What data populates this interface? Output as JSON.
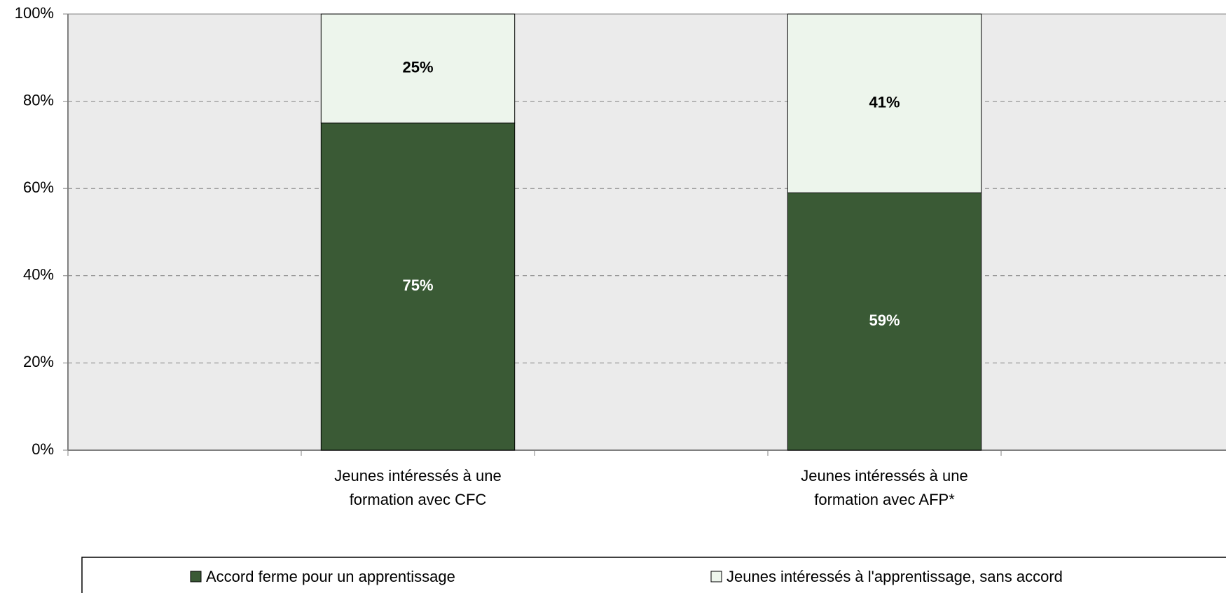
{
  "chart_data": {
    "type": "stacked_bar",
    "categories": [
      null,
      "Jeunes intéressés à une formation avec CFC",
      null,
      "Jeunes intéressés à une formation avec AFP*",
      null
    ],
    "series": [
      {
        "name": "Accord ferme pour un apprentissage",
        "color": "#3a5a35",
        "values": [
          null,
          75,
          null,
          59,
          null
        ],
        "value_labels": [
          null,
          "75%",
          null,
          "59%",
          null
        ]
      },
      {
        "name": "Jeunes intéressés à l'apprentissage, sans accord",
        "color": "#edf5ec",
        "values": [
          null,
          25,
          null,
          41,
          null
        ],
        "value_labels": [
          null,
          "25%",
          null,
          "41%",
          null
        ]
      }
    ],
    "ylim": [
      0,
      100
    ],
    "yticks": [
      {
        "value": 0,
        "label": "0%"
      },
      {
        "value": 20,
        "label": "20%"
      },
      {
        "value": 40,
        "label": "40%"
      },
      {
        "value": 60,
        "label": "60%"
      },
      {
        "value": 80,
        "label": "80%"
      },
      {
        "value": 100,
        "label": "100%"
      }
    ],
    "grid": true,
    "legend": "bottom"
  }
}
